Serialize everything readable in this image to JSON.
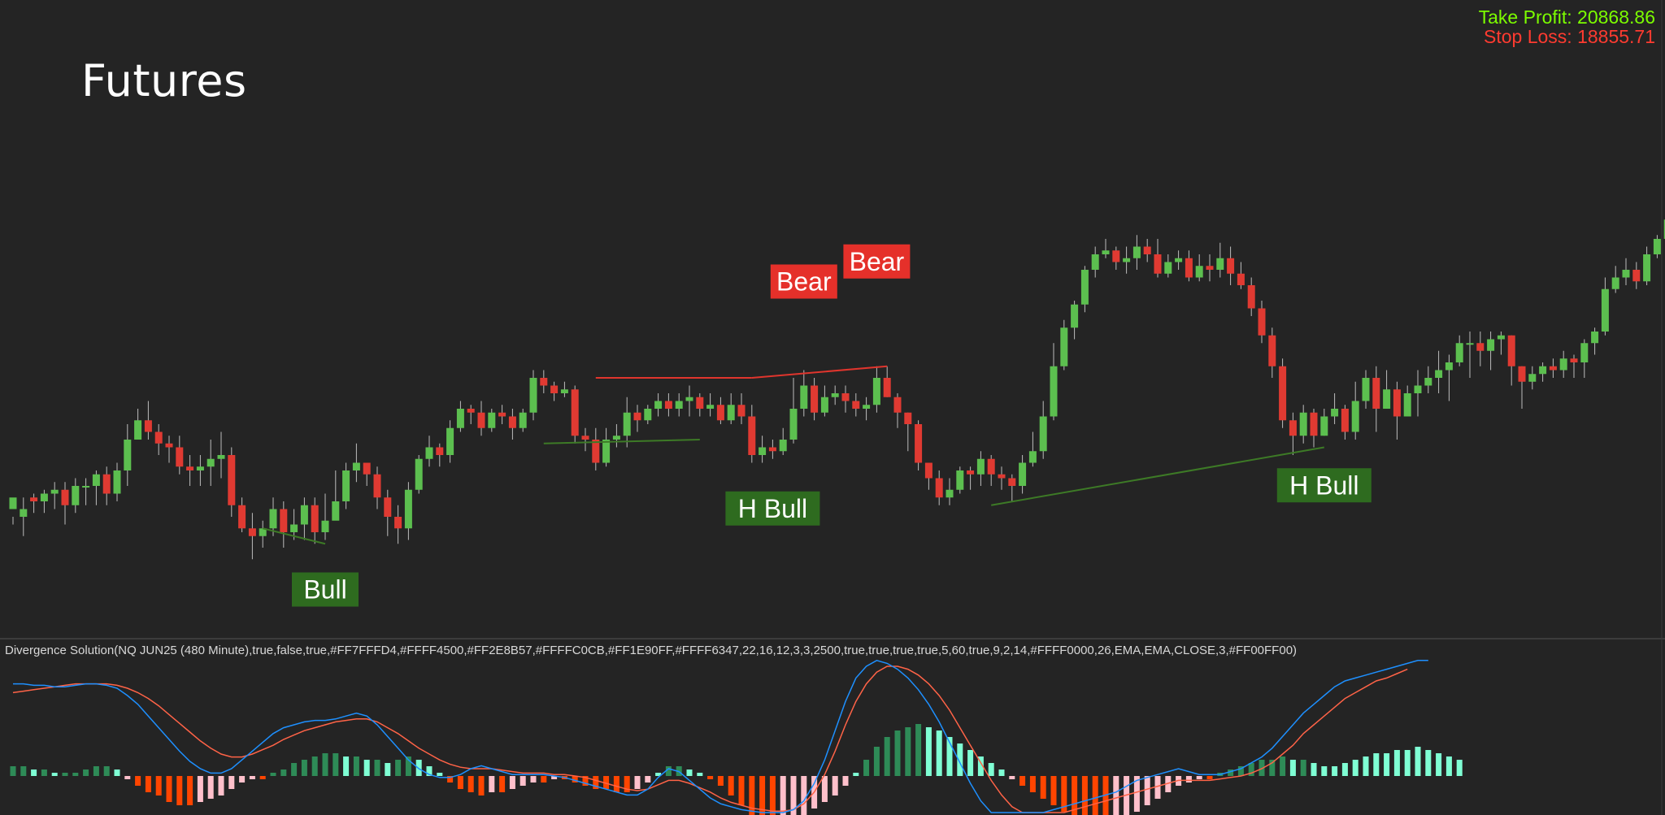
{
  "app": {
    "title": "Futures"
  },
  "targets": {
    "take_profit": "Take Profit: 20868.86",
    "stop_loss": "Stop Loss: 18855.71"
  },
  "indicator": {
    "label": "Divergence Solution(NQ JUN25 (480 Minute),true,false,true,#FF7FFFD4,#FFFF4500,#FF2E8B57,#FFFFC0CB,#FF1E90FF,#FFFF6347,22,16,12,3,3,2500,true,true,true,true,5,60,true,9,2,14,#FFFF0000,26,EMA,EMA,CLOSE,3,#FF00FF00)"
  },
  "colors": {
    "background": "#242424",
    "up_candle": "#5cbf4f",
    "down_candle": "#e03a32",
    "bull_label_bg": "#2e6b1f",
    "bear_label_bg": "#e5302a",
    "hist_pos_strong": "#7fffd4",
    "hist_pos_weak": "#2e8b57",
    "hist_neg_strong": "#ff4500",
    "hist_neg_weak": "#ffc0cb",
    "fast_line": "#1e90ff",
    "slow_line": "#ff6347"
  },
  "chart_data": {
    "type": "candlestick",
    "price_range": [
      0,
      100
    ],
    "candles": [
      [
        26,
        29,
        24,
        22
      ],
      [
        24,
        26,
        29,
        19
      ],
      [
        29,
        28,
        30,
        25
      ],
      [
        28,
        30,
        31,
        25
      ],
      [
        30,
        31,
        33,
        26
      ],
      [
        31,
        27,
        33,
        22
      ],
      [
        27,
        32,
        34,
        25
      ],
      [
        32,
        32,
        34,
        27
      ],
      [
        32,
        35,
        36,
        27
      ],
      [
        35,
        30,
        37,
        27
      ],
      [
        30,
        36,
        38,
        28
      ],
      [
        36,
        44,
        48,
        32
      ],
      [
        44,
        49,
        52,
        44
      ],
      [
        49,
        46,
        54,
        44
      ],
      [
        46,
        43,
        48,
        40
      ],
      [
        43,
        42,
        45,
        38
      ],
      [
        42,
        37,
        45,
        35
      ],
      [
        37,
        36,
        40,
        32
      ],
      [
        36,
        37,
        40,
        32
      ],
      [
        37,
        39,
        44,
        32
      ],
      [
        39,
        40,
        46,
        34
      ],
      [
        40,
        27,
        42,
        24
      ],
      [
        27,
        21,
        29,
        20
      ],
      [
        21,
        19,
        25,
        13
      ],
      [
        19,
        21,
        23,
        16
      ],
      [
        21,
        26,
        29,
        19
      ],
      [
        26,
        20,
        28,
        16
      ],
      [
        20,
        22,
        26,
        18
      ],
      [
        22,
        27,
        29,
        18
      ],
      [
        27,
        20,
        29,
        17
      ],
      [
        20,
        23,
        30,
        18
      ],
      [
        23,
        28,
        36,
        25
      ],
      [
        28,
        36,
        38,
        26
      ],
      [
        36,
        38,
        43,
        33
      ],
      [
        38,
        35,
        37,
        32
      ],
      [
        35,
        29,
        37,
        26
      ],
      [
        29,
        24,
        31,
        19
      ],
      [
        24,
        21,
        27,
        17
      ],
      [
        21,
        31,
        33,
        18
      ],
      [
        31,
        39,
        40,
        30
      ],
      [
        39,
        42,
        45,
        37
      ],
      [
        42,
        40,
        43,
        37
      ],
      [
        40,
        47,
        49,
        38
      ],
      [
        47,
        52,
        54,
        46
      ],
      [
        52,
        51,
        53,
        48
      ],
      [
        51,
        47,
        54,
        45
      ],
      [
        47,
        51,
        52,
        46
      ],
      [
        51,
        50,
        53,
        48
      ],
      [
        50,
        47,
        52,
        44
      ],
      [
        47,
        51,
        52,
        46
      ],
      [
        51,
        60,
        62,
        49
      ],
      [
        60,
        58,
        62,
        56
      ],
      [
        58,
        56,
        59,
        54
      ],
      [
        56,
        57,
        59,
        55
      ],
      [
        57,
        45,
        58,
        43
      ],
      [
        45,
        44,
        47,
        41
      ],
      [
        44,
        38,
        47,
        36
      ],
      [
        38,
        44,
        47,
        37
      ],
      [
        44,
        45,
        48,
        42
      ],
      [
        45,
        51,
        55,
        42
      ],
      [
        51,
        49,
        53,
        46
      ],
      [
        49,
        52,
        53,
        48
      ],
      [
        52,
        54,
        56,
        50
      ],
      [
        54,
        52,
        56,
        50
      ],
      [
        52,
        54,
        56,
        50
      ],
      [
        54,
        55,
        58,
        50
      ],
      [
        55,
        52,
        56,
        50
      ],
      [
        52,
        53,
        56,
        50
      ],
      [
        53,
        49,
        55,
        48
      ],
      [
        49,
        53,
        56,
        48
      ],
      [
        53,
        50,
        56,
        48
      ],
      [
        50,
        40,
        53,
        38
      ],
      [
        40,
        42,
        45,
        38
      ],
      [
        42,
        41,
        44,
        39
      ],
      [
        41,
        44,
        47,
        40
      ],
      [
        44,
        52,
        60,
        43
      ],
      [
        52,
        58,
        62,
        50
      ],
      [
        58,
        51,
        60,
        49
      ],
      [
        51,
        55,
        58,
        50
      ],
      [
        55,
        56,
        58,
        53
      ],
      [
        56,
        54,
        58,
        51
      ],
      [
        54,
        52,
        56,
        50
      ],
      [
        52,
        53,
        55,
        49
      ],
      [
        53,
        60,
        63,
        51
      ],
      [
        60,
        55,
        63,
        55
      ],
      [
        55,
        51,
        56,
        47
      ],
      [
        51,
        48,
        51,
        41
      ],
      [
        48,
        38,
        49,
        36
      ],
      [
        38,
        34,
        36,
        31
      ],
      [
        34,
        29,
        36,
        27
      ],
      [
        29,
        31,
        34,
        27
      ],
      [
        31,
        36,
        37,
        30
      ],
      [
        36,
        35,
        37,
        31
      ],
      [
        35,
        39,
        41,
        32
      ],
      [
        39,
        35,
        40,
        32
      ],
      [
        35,
        34,
        37,
        31
      ],
      [
        34,
        32,
        35,
        28
      ],
      [
        32,
        38,
        40,
        30
      ],
      [
        38,
        41,
        46,
        37
      ],
      [
        41,
        50,
        54,
        39
      ],
      [
        50,
        63,
        69,
        49
      ],
      [
        63,
        73,
        75,
        62
      ],
      [
        73,
        79,
        80,
        70
      ],
      [
        79,
        88,
        89,
        77
      ],
      [
        88,
        92,
        94,
        86
      ],
      [
        92,
        93,
        96,
        91
      ],
      [
        93,
        90,
        94,
        88
      ],
      [
        90,
        91,
        94,
        87
      ],
      [
        91,
        94,
        97,
        88
      ],
      [
        94,
        92,
        96,
        90
      ],
      [
        92,
        87,
        96,
        86
      ],
      [
        87,
        90,
        92,
        86
      ],
      [
        90,
        91,
        93,
        88
      ],
      [
        91,
        86,
        93,
        85
      ],
      [
        86,
        89,
        92,
        85
      ],
      [
        89,
        88,
        92,
        85
      ],
      [
        88,
        91,
        95,
        86
      ],
      [
        91,
        87,
        94,
        84
      ],
      [
        87,
        84,
        90,
        83
      ],
      [
        84,
        78,
        86,
        76
      ],
      [
        78,
        71,
        80,
        69
      ],
      [
        71,
        63,
        73,
        60
      ],
      [
        63,
        49,
        65,
        47
      ],
      [
        49,
        45,
        51,
        40
      ],
      [
        45,
        51,
        53,
        43
      ],
      [
        51,
        45,
        52,
        42
      ],
      [
        45,
        50,
        52,
        45
      ],
      [
        50,
        52,
        56,
        48
      ],
      [
        52,
        46,
        53,
        44
      ],
      [
        46,
        54,
        59,
        44
      ],
      [
        54,
        60,
        62,
        52
      ],
      [
        60,
        52,
        63,
        46
      ],
      [
        52,
        57,
        62,
        52
      ],
      [
        57,
        50,
        59,
        44
      ],
      [
        50,
        56,
        58,
        50
      ],
      [
        56,
        58,
        62,
        50
      ],
      [
        58,
        60,
        63,
        56
      ],
      [
        60,
        62,
        67,
        56
      ],
      [
        62,
        64,
        66,
        54
      ],
      [
        64,
        69,
        71,
        63
      ],
      [
        69,
        69,
        72,
        60
      ],
      [
        69,
        67,
        72,
        63
      ],
      [
        67,
        70,
        72,
        62
      ],
      [
        70,
        71,
        72,
        66
      ],
      [
        71,
        63,
        71,
        58
      ],
      [
        63,
        59,
        63,
        52
      ],
      [
        59,
        61,
        63,
        57
      ],
      [
        61,
        63,
        64,
        59
      ],
      [
        63,
        62,
        65,
        60
      ],
      [
        62,
        65,
        67,
        60
      ],
      [
        65,
        64,
        66,
        60
      ],
      [
        64,
        69,
        70,
        60
      ],
      [
        69,
        72,
        73,
        66
      ],
      [
        72,
        83,
        86,
        71
      ],
      [
        83,
        86,
        89,
        82
      ],
      [
        86,
        88,
        91,
        84
      ],
      [
        88,
        85,
        90,
        83
      ],
      [
        85,
        92,
        94,
        84
      ],
      [
        92,
        96,
        97,
        91
      ],
      [
        96,
        101,
        104,
        95
      ],
      [
        101,
        108,
        110,
        100
      ],
      [
        108,
        108,
        112,
        105
      ],
      [
        108,
        107,
        109,
        103
      ],
      [
        107,
        107,
        110,
        104
      ],
      [
        107,
        104,
        111,
        102
      ],
      [
        104,
        112,
        113,
        102
      ],
      [
        112,
        116,
        120,
        110
      ],
      [
        116,
        115,
        121,
        113
      ]
    ],
    "divergence_lines": [
      {
        "type": "bull",
        "from": [
          24,
          21
        ],
        "to": [
          30,
          17
        ]
      },
      {
        "type": "hidden-bull",
        "from": [
          51,
          43
        ],
        "to": [
          66,
          44
        ]
      },
      {
        "type": "bear",
        "from": [
          56,
          60
        ],
        "to": [
          71,
          60
        ]
      },
      {
        "type": "bear",
        "from": [
          71,
          60
        ],
        "to": [
          84,
          63
        ]
      },
      {
        "type": "hidden-bull",
        "from": [
          94,
          27
        ],
        "to": [
          126,
          42
        ]
      }
    ],
    "signal_labels": [
      {
        "text": "Bull",
        "index": 30
      },
      {
        "text": "H Bull",
        "index": 73
      },
      {
        "text": "Bear",
        "index": 76
      },
      {
        "text": "Bear",
        "index": 83
      },
      {
        "text": "H Bull",
        "index": 126
      }
    ],
    "indicator_series": {
      "histogram": [
        3,
        3,
        2,
        2,
        1,
        1,
        1,
        2,
        3,
        3,
        2,
        -1,
        -3,
        -5,
        -6,
        -8,
        -9,
        -9,
        -8,
        -7,
        -6,
        -4,
        -2,
        -1,
        -1,
        1,
        2,
        4,
        5,
        6,
        7,
        7,
        6,
        6,
        5,
        5,
        4,
        5,
        6,
        5,
        3,
        1,
        -2,
        -4,
        -5,
        -6,
        -5,
        -5,
        -4,
        -3,
        -2,
        -2,
        -1,
        -1,
        -2,
        -3,
        -4,
        -4,
        -5,
        -5,
        -4,
        -2,
        1,
        3,
        3,
        2,
        1,
        -1,
        -3,
        -6,
        -9,
        -12,
        -15,
        -17,
        -16,
        -14,
        -12,
        -10,
        -8,
        -6,
        -3,
        1,
        5,
        9,
        12,
        14,
        15,
        16,
        15,
        14,
        12,
        10,
        8,
        6,
        4,
        2,
        -1,
        -3,
        -5,
        -7,
        -9,
        -11,
        -13,
        -15,
        -16,
        -16,
        -15,
        -13,
        -11,
        -9,
        -7,
        -5,
        -3,
        -2,
        -1,
        -1,
        1,
        2,
        3,
        4,
        5,
        5,
        6,
        5,
        5,
        4,
        3,
        3,
        4,
        5,
        6,
        7,
        7,
        8,
        8,
        9,
        8,
        7,
        6,
        5
      ],
      "fast": [
        88,
        88,
        87,
        87,
        86,
        86,
        87,
        88,
        88,
        87,
        85,
        80,
        74,
        66,
        58,
        50,
        42,
        35,
        30,
        27,
        27,
        30,
        36,
        42,
        48,
        54,
        58,
        60,
        62,
        63,
        63,
        64,
        66,
        68,
        66,
        60,
        52,
        44,
        36,
        30,
        26,
        24,
        24,
        26,
        30,
        32,
        30,
        28,
        26,
        26,
        26,
        26,
        25,
        24,
        22,
        20,
        18,
        16,
        14,
        12,
        12,
        16,
        24,
        30,
        28,
        22,
        16,
        10,
        6,
        4,
        2,
        1,
        0,
        0,
        0,
        2,
        8,
        20,
        36,
        56,
        76,
        92,
        100,
        104,
        102,
        98,
        92,
        84,
        74,
        62,
        48,
        34,
        20,
        8,
        0,
        0,
        0,
        0,
        0,
        0,
        2,
        4,
        6,
        8,
        10,
        12,
        14,
        18,
        22,
        24,
        26,
        28,
        30,
        28,
        26,
        26,
        26,
        28,
        30,
        34,
        38,
        44,
        52,
        60,
        68,
        74,
        80,
        86,
        90,
        92,
        94,
        96,
        98,
        100,
        102,
        104,
        104
      ],
      "slow": [
        82,
        83,
        84,
        85,
        86,
        87,
        88,
        88,
        88,
        88,
        87,
        85,
        82,
        78,
        73,
        67,
        61,
        55,
        49,
        44,
        40,
        38,
        38,
        40,
        43,
        46,
        50,
        53,
        56,
        58,
        60,
        62,
        63,
        64,
        64,
        62,
        58,
        54,
        49,
        44,
        40,
        36,
        33,
        31,
        30,
        30,
        30,
        29,
        28,
        27,
        27,
        27,
        26,
        26,
        25,
        24,
        22,
        20,
        18,
        16,
        15,
        16,
        19,
        22,
        22,
        20,
        17,
        14,
        10,
        7,
        5,
        3,
        2,
        1,
        1,
        2,
        6,
        14,
        26,
        42,
        60,
        76,
        88,
        96,
        100,
        100,
        98,
        94,
        88,
        80,
        70,
        58,
        46,
        34,
        22,
        12,
        4,
        0,
        0,
        0,
        0,
        0,
        2,
        4,
        6,
        8,
        10,
        12,
        14,
        16,
        18,
        20,
        22,
        22,
        22,
        22,
        23,
        24,
        25,
        27,
        30,
        34,
        40,
        46,
        54,
        60,
        66,
        72,
        78,
        82,
        86,
        90,
        92,
        95,
        98
      ]
    }
  }
}
